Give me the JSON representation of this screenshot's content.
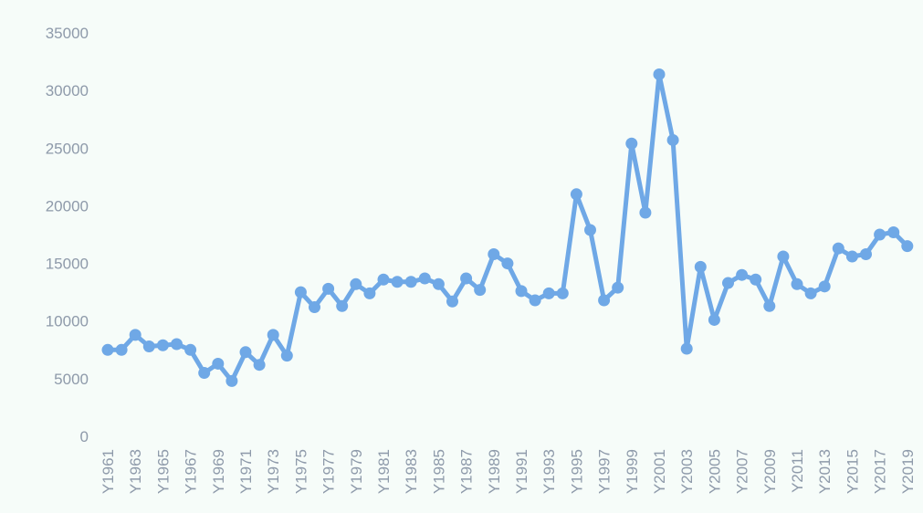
{
  "chart_data": {
    "type": "line",
    "title": "",
    "xlabel": "",
    "ylabel": "",
    "ylim": [
      0,
      35000
    ],
    "yticks": [
      "0",
      "5000",
      "10000",
      "15000",
      "20000",
      "25000",
      "30000",
      "35000"
    ],
    "categories": [
      "Y1961",
      "Y1962",
      "Y1963",
      "Y1964",
      "Y1965",
      "Y1966",
      "Y1967",
      "Y1968",
      "Y1969",
      "Y1970",
      "Y1971",
      "Y1972",
      "Y1973",
      "Y1974",
      "Y1975",
      "Y1976",
      "Y1977",
      "Y1978",
      "Y1979",
      "Y1980",
      "Y1981",
      "Y1982",
      "Y1983",
      "Y1984",
      "Y1985",
      "Y1986",
      "Y1987",
      "Y1988",
      "Y1989",
      "Y1990",
      "Y1991",
      "Y1992",
      "Y1993",
      "Y1994",
      "Y1995",
      "Y1996",
      "Y1997",
      "Y1998",
      "Y1999",
      "Y2000",
      "Y2001",
      "Y2002",
      "Y2003",
      "Y2004",
      "Y2005",
      "Y2006",
      "Y2007",
      "Y2008",
      "Y2009",
      "Y2010",
      "Y2011",
      "Y2012",
      "Y2013",
      "Y2014",
      "Y2015",
      "Y2016",
      "Y2017",
      "Y2018",
      "Y2019"
    ],
    "x_label_every": 2,
    "series": [
      {
        "values": [
          7500,
          7500,
          8800,
          7800,
          7900,
          8000,
          7500,
          5500,
          6300,
          4800,
          7300,
          6200,
          8800,
          7000,
          12500,
          11200,
          12800,
          11300,
          13200,
          12400,
          13600,
          13400,
          13400,
          13700,
          13200,
          11700,
          13700,
          12700,
          15800,
          15000,
          12600,
          11800,
          12400,
          12400,
          21000,
          17900,
          11800,
          12900,
          25400,
          19400,
          31400,
          25700,
          7600,
          14700,
          10100,
          13300,
          14000,
          13600,
          11300,
          15600,
          13200,
          12400,
          13000,
          16300,
          15600,
          15800,
          17500,
          17700,
          16500
        ],
        "color": "#6fa8e6"
      }
    ],
    "grid": false,
    "legend": "none",
    "background": "#f6fcf9"
  }
}
